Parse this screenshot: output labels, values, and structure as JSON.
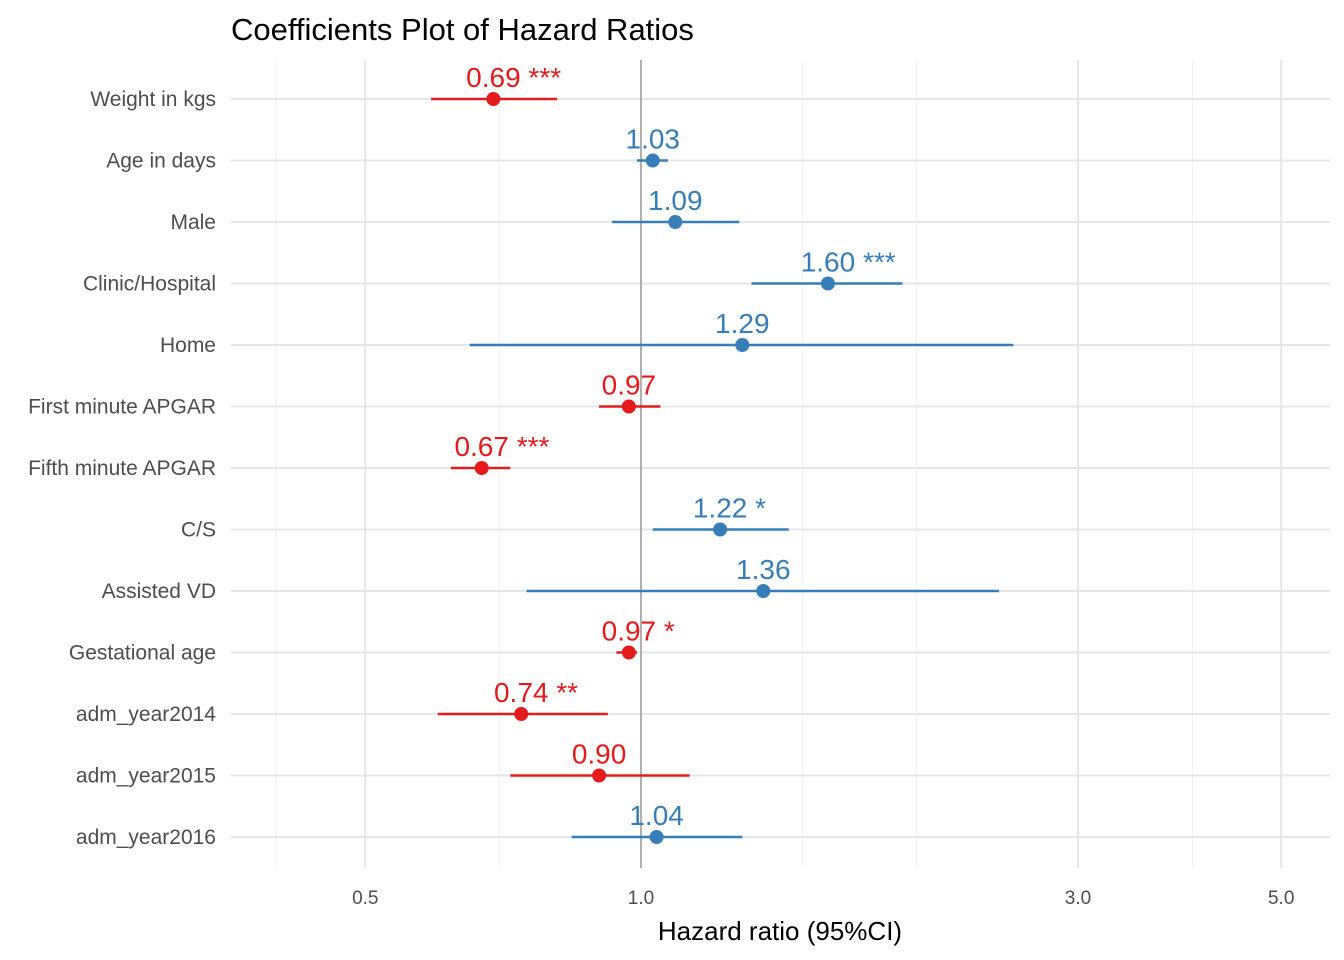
{
  "chart_data": {
    "type": "forest",
    "title": "Coefficients Plot of Hazard Ratios",
    "xlabel": "Hazard ratio (95%CI)",
    "ylabel": "",
    "x_scale": "log",
    "xlim": [
      0.4,
      5.8
    ],
    "x_ticks": [
      0.5,
      1.0,
      3.0,
      5.0
    ],
    "x_tick_labels": [
      "0.5",
      "1.0",
      "3.0",
      "5.0"
    ],
    "x_minor_grid": [
      0.4,
      0.7,
      1.5,
      2.0,
      4.0
    ],
    "reference_line": 1.0,
    "grid": true,
    "legend": "none",
    "colors": {
      "decrease": "#e41a1c",
      "increase": "#377eb8",
      "reference": "#9e9e9e"
    },
    "rows": [
      {
        "label": "Weight in kgs",
        "hr": 0.69,
        "lo": 0.59,
        "hi": 0.81,
        "annotation": "0.69 ***"
      },
      {
        "label": "Age in days",
        "hr": 1.03,
        "lo": 0.99,
        "hi": 1.07,
        "annotation": "1.03"
      },
      {
        "label": "Male",
        "hr": 1.09,
        "lo": 0.93,
        "hi": 1.28,
        "annotation": "1.09"
      },
      {
        "label": "Clinic/Hospital",
        "hr": 1.6,
        "lo": 1.32,
        "hi": 1.93,
        "annotation": "1.60 ***"
      },
      {
        "label": "Home",
        "hr": 1.29,
        "lo": 0.65,
        "hi": 2.55,
        "annotation": "1.29"
      },
      {
        "label": "First minute APGAR",
        "hr": 0.97,
        "lo": 0.9,
        "hi": 1.05,
        "annotation": "0.97"
      },
      {
        "label": "Fifth minute APGAR",
        "hr": 0.67,
        "lo": 0.62,
        "hi": 0.72,
        "annotation": "0.67 ***"
      },
      {
        "label": "C/S",
        "hr": 1.22,
        "lo": 1.03,
        "hi": 1.45,
        "annotation": "1.22 *"
      },
      {
        "label": "Assisted VD",
        "hr": 1.36,
        "lo": 0.75,
        "hi": 2.46,
        "annotation": "1.36"
      },
      {
        "label": "Gestational age",
        "hr": 0.97,
        "lo": 0.94,
        "hi": 0.99,
        "annotation": "0.97 *"
      },
      {
        "label": "adm_year2014",
        "hr": 0.74,
        "lo": 0.6,
        "hi": 0.92,
        "annotation": "0.74 **"
      },
      {
        "label": "adm_year2015",
        "hr": 0.9,
        "lo": 0.72,
        "hi": 1.13,
        "annotation": "0.90"
      },
      {
        "label": "adm_year2016",
        "hr": 1.04,
        "lo": 0.84,
        "hi": 1.29,
        "annotation": "1.04"
      }
    ]
  }
}
